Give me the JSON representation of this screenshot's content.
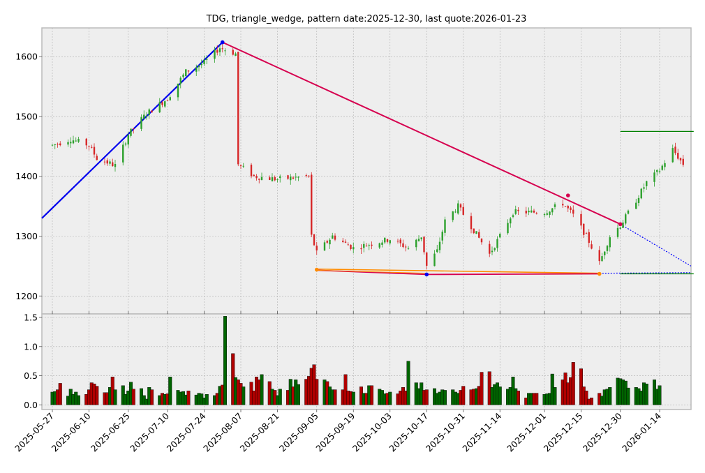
{
  "chart_data": {
    "type": "candlestick",
    "title": "TDG, triangle_wedge, pattern date:2025-12-30, last quote:2026-01-23",
    "price_axis": {
      "ylim": [
        1170,
        1648
      ],
      "ticks": [
        1200,
        1300,
        1400,
        1500,
        1600
      ]
    },
    "volume_axis": {
      "ylim": [
        -0.08,
        1.56
      ],
      "ticks": [
        0.0,
        0.5,
        1.0,
        1.5
      ],
      "tick_labels": [
        "0.0",
        "0.5",
        "1.0",
        "1.5"
      ]
    },
    "x_axis": {
      "start": "2025-05-23",
      "end": "2026-01-26",
      "ticks": [
        "2025-05-27",
        "2025-06-10",
        "2025-06-25",
        "2025-07-10",
        "2025-07-24",
        "2025-08-07",
        "2025-08-21",
        "2025-09-05",
        "2025-09-19",
        "2025-10-03",
        "2025-10-17",
        "2025-10-31",
        "2025-11-14",
        "2025-12-01",
        "2025-12-15",
        "2025-12-30",
        "2026-01-14"
      ]
    },
    "colors": {
      "up": "#2ca02c",
      "down": "#d62728",
      "vol_up": "#006400",
      "vol_down": "#b00000",
      "support": "#ff8c00",
      "resistance_main": "#d6004f",
      "uptrend": "#0000ee",
      "target": "#008000",
      "projection": "#0000ff"
    },
    "lines": [
      {
        "name": "uptrend",
        "points": [
          [
            "2025-05-23",
            1330
          ],
          [
            "2025-07-31",
            1624
          ]
        ]
      },
      {
        "name": "resistance",
        "points": [
          [
            "2025-07-31",
            1624
          ],
          [
            "2025-12-30",
            1320
          ]
        ]
      },
      {
        "name": "resistance-projection",
        "points": [
          [
            "2025-12-30",
            1320
          ],
          [
            "2026-01-26",
            1250
          ]
        ]
      },
      {
        "name": "support-upper",
        "points": [
          [
            "2025-09-05",
            1245
          ],
          [
            "2025-12-22",
            1238
          ]
        ]
      },
      {
        "name": "support-lower",
        "points": [
          [
            "2025-09-05",
            1243
          ],
          [
            "2025-10-17",
            1236
          ],
          [
            "2025-12-22",
            1237
          ]
        ]
      },
      {
        "name": "support-projection",
        "points": [
          [
            "2025-12-22",
            1238
          ],
          [
            "2026-01-26",
            1239
          ]
        ]
      },
      {
        "name": "target-high",
        "points": [
          [
            "2025-12-30",
            1475
          ],
          [
            "2026-01-27",
            1475
          ]
        ]
      },
      {
        "name": "target-low",
        "points": [
          [
            "2025-12-30",
            1237
          ],
          [
            "2026-01-27",
            1237
          ]
        ]
      }
    ],
    "markers": [
      {
        "date": "2025-07-31",
        "price": 1624,
        "color": "#0000ee"
      },
      {
        "date": "2025-10-17",
        "price": 1236,
        "color": "#0000ee"
      },
      {
        "date": "2025-12-10",
        "price": 1368,
        "color": "#d6004f"
      },
      {
        "date": "2025-12-30",
        "price": 1320,
        "color": "#d6004f"
      },
      {
        "date": "2025-09-05",
        "price": 1244,
        "color": "#ff8c00"
      },
      {
        "date": "2025-12-22",
        "price": 1237,
        "color": "#ff8c00"
      }
    ],
    "volume": [
      0.22,
      0.23,
      0.26,
      0.37,
      0.15,
      0.27,
      0.18,
      0.22,
      0.16,
      0.18,
      0.26,
      0.38,
      0.36,
      0.32,
      0.21,
      0.21,
      0.3,
      0.48,
      0.26,
      0.33,
      0.18,
      0.24,
      0.39,
      0.27,
      0.28,
      0.16,
      0.1,
      0.3,
      0.26,
      0.16,
      0.2,
      0.18,
      0.19,
      0.48,
      0.25,
      0.22,
      0.23,
      0.17,
      0.24,
      0.17,
      0.2,
      0.19,
      0.12,
      0.18,
      0.16,
      0.2,
      0.32,
      0.34,
      1.52,
      0.88,
      0.47,
      0.43,
      0.37,
      0.31,
      0.39,
      0.24,
      0.48,
      0.43,
      0.52,
      0.4,
      0.27,
      0.25,
      0.16,
      0.27,
      0.25,
      0.44,
      0.31,
      0.43,
      0.35,
      0.44,
      0.49,
      0.63,
      0.69,
      0.44,
      0.43,
      0.4,
      0.31,
      0.26,
      0.26,
      0.26,
      0.52,
      0.24,
      0.23,
      0.22,
      0.31,
      0.2,
      0.2,
      0.33,
      0.33,
      0.27,
      0.25,
      0.19,
      0.2,
      0.22,
      0.19,
      0.24,
      0.3,
      0.24,
      0.75,
      0.38,
      0.28,
      0.38,
      0.25,
      0.26,
      0.28,
      0.2,
      0.22,
      0.26,
      0.25,
      0.26,
      0.22,
      0.2,
      0.25,
      0.32,
      0.26,
      0.27,
      0.28,
      0.32,
      0.56,
      0.57,
      0.3,
      0.35,
      0.38,
      0.31,
      0.27,
      0.3,
      0.48,
      0.28,
      0.24,
      0.12,
      0.2,
      0.2,
      0.2,
      0.2,
      0.18,
      0.19,
      0.2,
      0.53,
      0.3,
      0.43,
      0.55,
      0.38,
      0.47,
      0.73,
      0.62,
      0.31,
      0.24,
      0.1,
      0.12,
      0.2,
      0.15,
      0.26,
      0.27,
      0.3,
      0.46,
      0.45,
      0.43,
      0.41,
      0.29,
      0.3,
      0.28,
      0.24,
      0.38,
      0.36,
      0.43,
      0.27,
      0.33
    ]
  }
}
